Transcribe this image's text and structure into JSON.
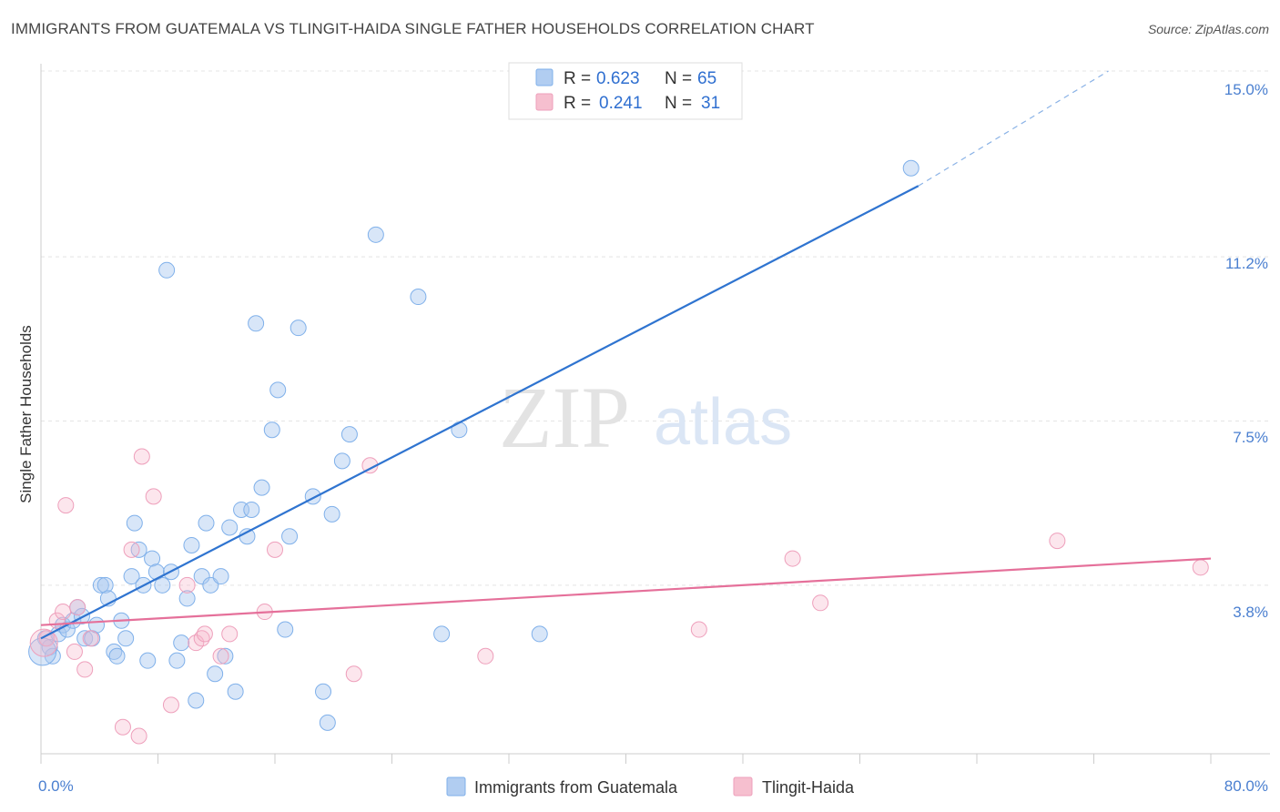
{
  "header": {
    "title": "IMMIGRANTS FROM GUATEMALA VS TLINGIT-HAIDA SINGLE FATHER HOUSEHOLDS CORRELATION CHART",
    "source": "Source: ZipAtlas.com"
  },
  "watermark": {
    "zip": "ZIP",
    "atlas": "atlas"
  },
  "legend_top": {
    "rows": [
      {
        "r_label": "R =",
        "r_value": "0.623",
        "n_label": "N =",
        "n_value": "65",
        "color": "#a9c8f0"
      },
      {
        "r_label": "R =",
        "r_value": "0.241",
        "n_label": "N =",
        "n_value": "31",
        "color": "#f5b8ca"
      }
    ]
  },
  "legend_bottom": {
    "items": [
      {
        "label": "Immigrants from Guatemala",
        "color": "#a9c8f0"
      },
      {
        "label": "Tlingit-Haida",
        "color": "#f5b8ca"
      }
    ]
  },
  "chart_data": {
    "type": "scatter",
    "title": "IMMIGRANTS FROM GUATEMALA VS TLINGIT-HAIDA SINGLE FATHER HOUSEHOLDS CORRELATION CHART",
    "xlabel": "",
    "ylabel": "Single Father Households",
    "xlim": [
      0,
      80
    ],
    "ylim": [
      0,
      15.5
    ],
    "x_tick_labels": [
      "0.0%",
      "80.0%"
    ],
    "y_ticks": [
      3.8,
      7.5,
      11.2,
      15.0
    ],
    "y_tick_labels": [
      "3.8%",
      "7.5%",
      "11.2%",
      "15.0%"
    ],
    "grid": true,
    "legend_position": "top-center",
    "series": [
      {
        "name": "Immigrants from Guatemala",
        "color": "#7fb0ea",
        "trend": {
          "x0": 0,
          "y0": 2.6,
          "x1": 60,
          "y1": 12.8,
          "dash_to_x": 73,
          "dash_to_y": 15.0
        },
        "points": [
          [
            0.3,
            2.6
          ],
          [
            0.6,
            2.4
          ],
          [
            0.8,
            2.2
          ],
          [
            1.2,
            2.7
          ],
          [
            1.5,
            2.9
          ],
          [
            1.8,
            2.8
          ],
          [
            2.2,
            3.0
          ],
          [
            2.5,
            3.3
          ],
          [
            2.8,
            3.1
          ],
          [
            3.0,
            2.6
          ],
          [
            3.5,
            2.6
          ],
          [
            3.8,
            2.9
          ],
          [
            4.1,
            3.8
          ],
          [
            4.4,
            3.8
          ],
          [
            4.6,
            3.5
          ],
          [
            5.0,
            2.3
          ],
          [
            5.2,
            2.2
          ],
          [
            5.5,
            3.0
          ],
          [
            5.8,
            2.6
          ],
          [
            6.2,
            4.0
          ],
          [
            6.4,
            5.2
          ],
          [
            6.7,
            4.6
          ],
          [
            7.0,
            3.8
          ],
          [
            7.3,
            2.1
          ],
          [
            7.6,
            4.4
          ],
          [
            7.9,
            4.1
          ],
          [
            8.3,
            3.8
          ],
          [
            8.6,
            10.9
          ],
          [
            8.9,
            4.1
          ],
          [
            9.3,
            2.1
          ],
          [
            9.6,
            2.5
          ],
          [
            10.0,
            3.5
          ],
          [
            10.3,
            4.7
          ],
          [
            10.6,
            1.2
          ],
          [
            11.0,
            4.0
          ],
          [
            11.3,
            5.2
          ],
          [
            11.6,
            3.8
          ],
          [
            11.9,
            1.8
          ],
          [
            12.3,
            4.0
          ],
          [
            12.6,
            2.2
          ],
          [
            12.9,
            5.1
          ],
          [
            13.3,
            1.4
          ],
          [
            13.7,
            5.5
          ],
          [
            14.1,
            4.9
          ],
          [
            14.4,
            5.5
          ],
          [
            14.7,
            9.7
          ],
          [
            15.1,
            6.0
          ],
          [
            15.8,
            7.3
          ],
          [
            16.2,
            8.2
          ],
          [
            16.7,
            2.8
          ],
          [
            17.0,
            4.9
          ],
          [
            17.6,
            9.6
          ],
          [
            18.6,
            5.8
          ],
          [
            19.3,
            1.4
          ],
          [
            19.6,
            0.7
          ],
          [
            19.9,
            5.4
          ],
          [
            20.6,
            6.6
          ],
          [
            21.1,
            7.2
          ],
          [
            22.9,
            11.7
          ],
          [
            25.8,
            10.3
          ],
          [
            27.4,
            2.7
          ],
          [
            28.6,
            7.3
          ],
          [
            34.1,
            2.7
          ],
          [
            59.5,
            13.2
          ],
          [
            0.1,
            2.3
          ]
        ]
      },
      {
        "name": "Tlingit-Haida",
        "color": "#f19ab6",
        "trend": {
          "x0": 0,
          "y0": 2.9,
          "x1": 80,
          "y1": 4.4
        },
        "points": [
          [
            0.4,
            2.6
          ],
          [
            1.1,
            3.0
          ],
          [
            1.5,
            3.2
          ],
          [
            1.7,
            5.6
          ],
          [
            2.3,
            2.3
          ],
          [
            2.5,
            3.3
          ],
          [
            3.0,
            1.9
          ],
          [
            3.4,
            2.6
          ],
          [
            5.6,
            0.6
          ],
          [
            6.2,
            4.6
          ],
          [
            6.7,
            0.4
          ],
          [
            6.9,
            6.7
          ],
          [
            7.7,
            5.8
          ],
          [
            8.9,
            1.1
          ],
          [
            10.0,
            3.8
          ],
          [
            10.6,
            2.5
          ],
          [
            11.0,
            2.6
          ],
          [
            11.2,
            2.7
          ],
          [
            12.3,
            2.2
          ],
          [
            12.9,
            2.7
          ],
          [
            15.3,
            3.2
          ],
          [
            16.0,
            4.6
          ],
          [
            21.4,
            1.8
          ],
          [
            22.5,
            6.5
          ],
          [
            30.4,
            2.2
          ],
          [
            45.0,
            2.8
          ],
          [
            51.4,
            4.4
          ],
          [
            53.3,
            3.4
          ],
          [
            69.5,
            4.8
          ],
          [
            79.3,
            4.2
          ],
          [
            0.2,
            2.5
          ]
        ]
      }
    ]
  }
}
